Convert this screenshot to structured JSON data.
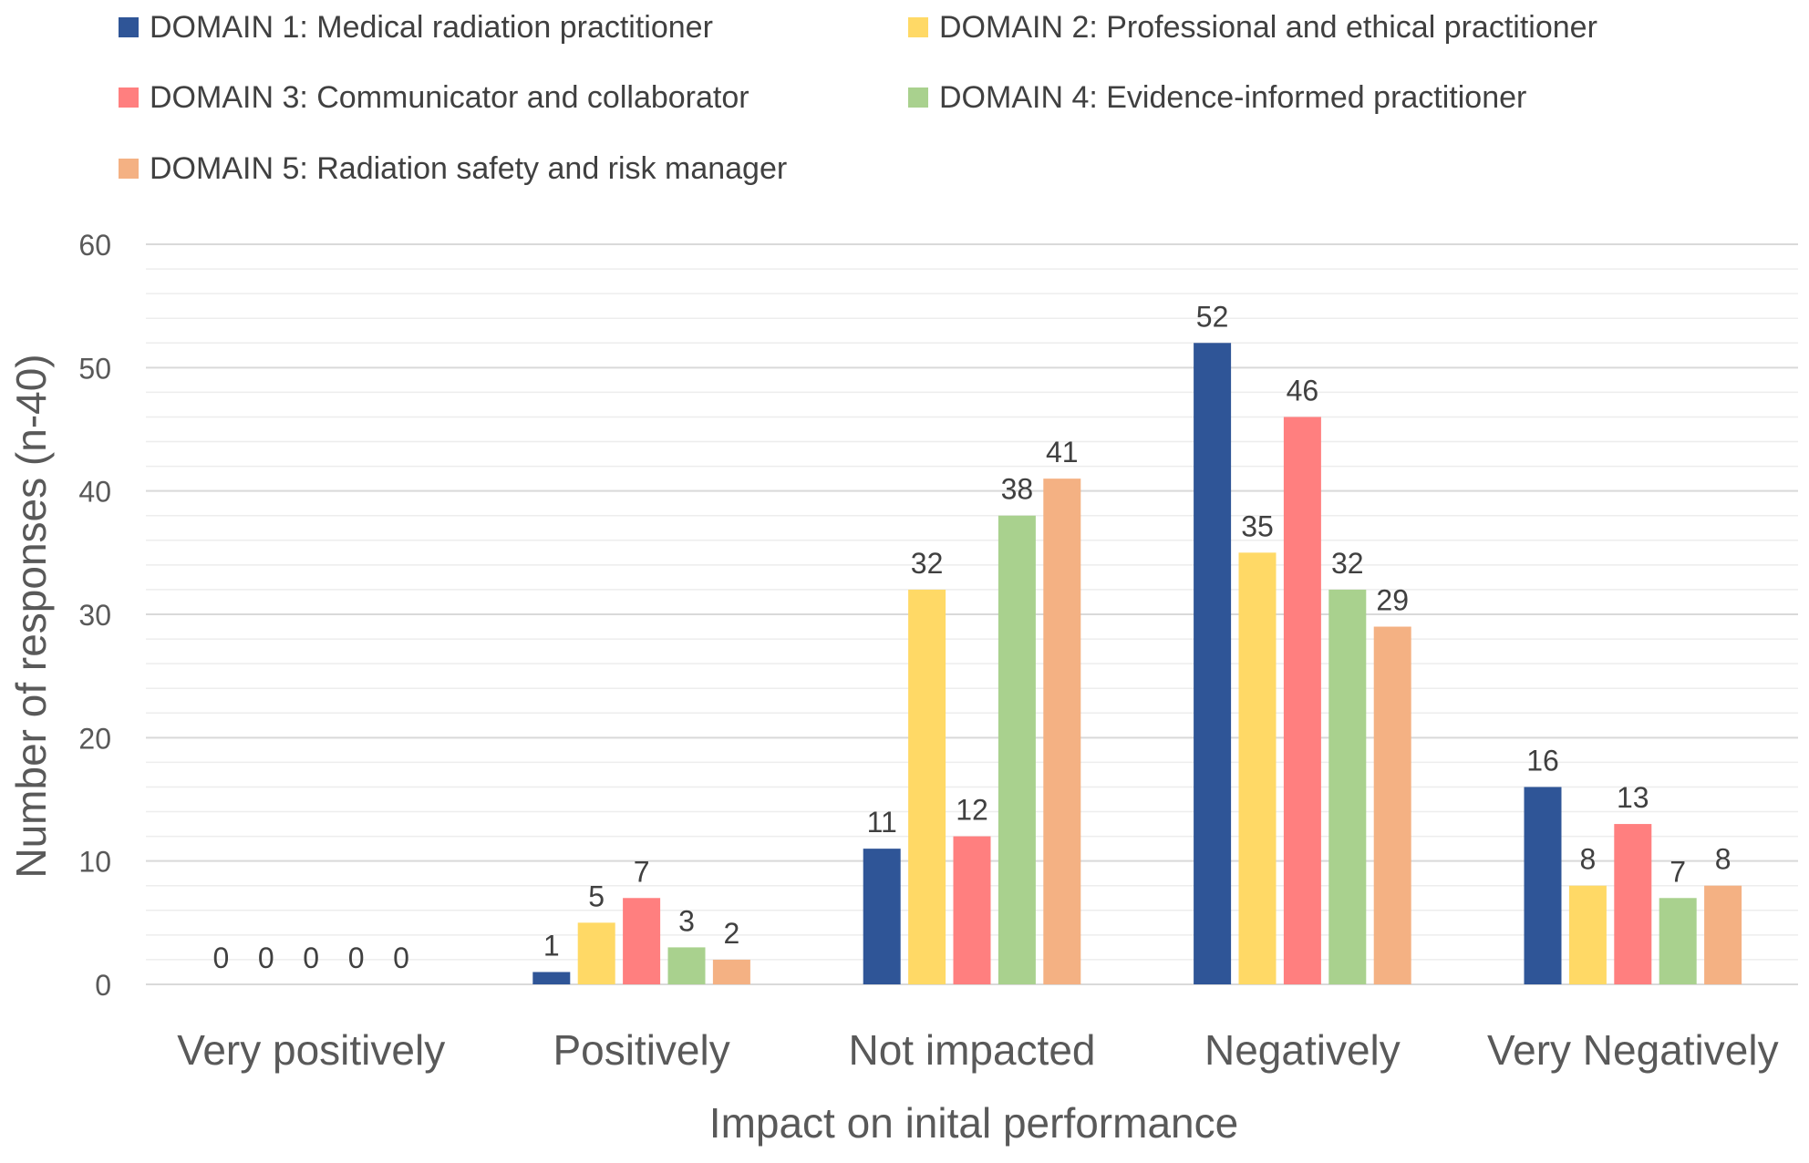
{
  "chart_data": {
    "type": "bar",
    "title": "",
    "xlabel": "Impact on inital performance",
    "ylabel": "Number of responses (n-40)",
    "ylim": [
      0,
      60
    ],
    "yticks": [
      "0",
      "10",
      "20",
      "30",
      "40",
      "50",
      "60"
    ],
    "categories": [
      "Very positively",
      "Positively",
      "Not impacted",
      "Negatively",
      "Very Negatively"
    ],
    "series": [
      {
        "name": "DOMAIN 1: Medical radiation practitioner",
        "color": "#2F5597",
        "values": [
          0,
          1,
          11,
          52,
          16
        ]
      },
      {
        "name": "DOMAIN 2: Professional and ethical practitioner",
        "color": "#FFD966",
        "values": [
          0,
          5,
          32,
          35,
          8
        ]
      },
      {
        "name": "DOMAIN 3: Communicator and collaborator",
        "color": "#FF7F7F",
        "values": [
          0,
          7,
          12,
          46,
          13
        ]
      },
      {
        "name": "DOMAIN 4: Evidence-informed practitioner",
        "color": "#A9D18E",
        "values": [
          0,
          3,
          38,
          32,
          7
        ]
      },
      {
        "name": "DOMAIN 5: Radiation safety and risk manager",
        "color": "#F4B183",
        "values": [
          0,
          2,
          41,
          29,
          8
        ]
      }
    ],
    "grid": true,
    "legend_position": "top"
  }
}
